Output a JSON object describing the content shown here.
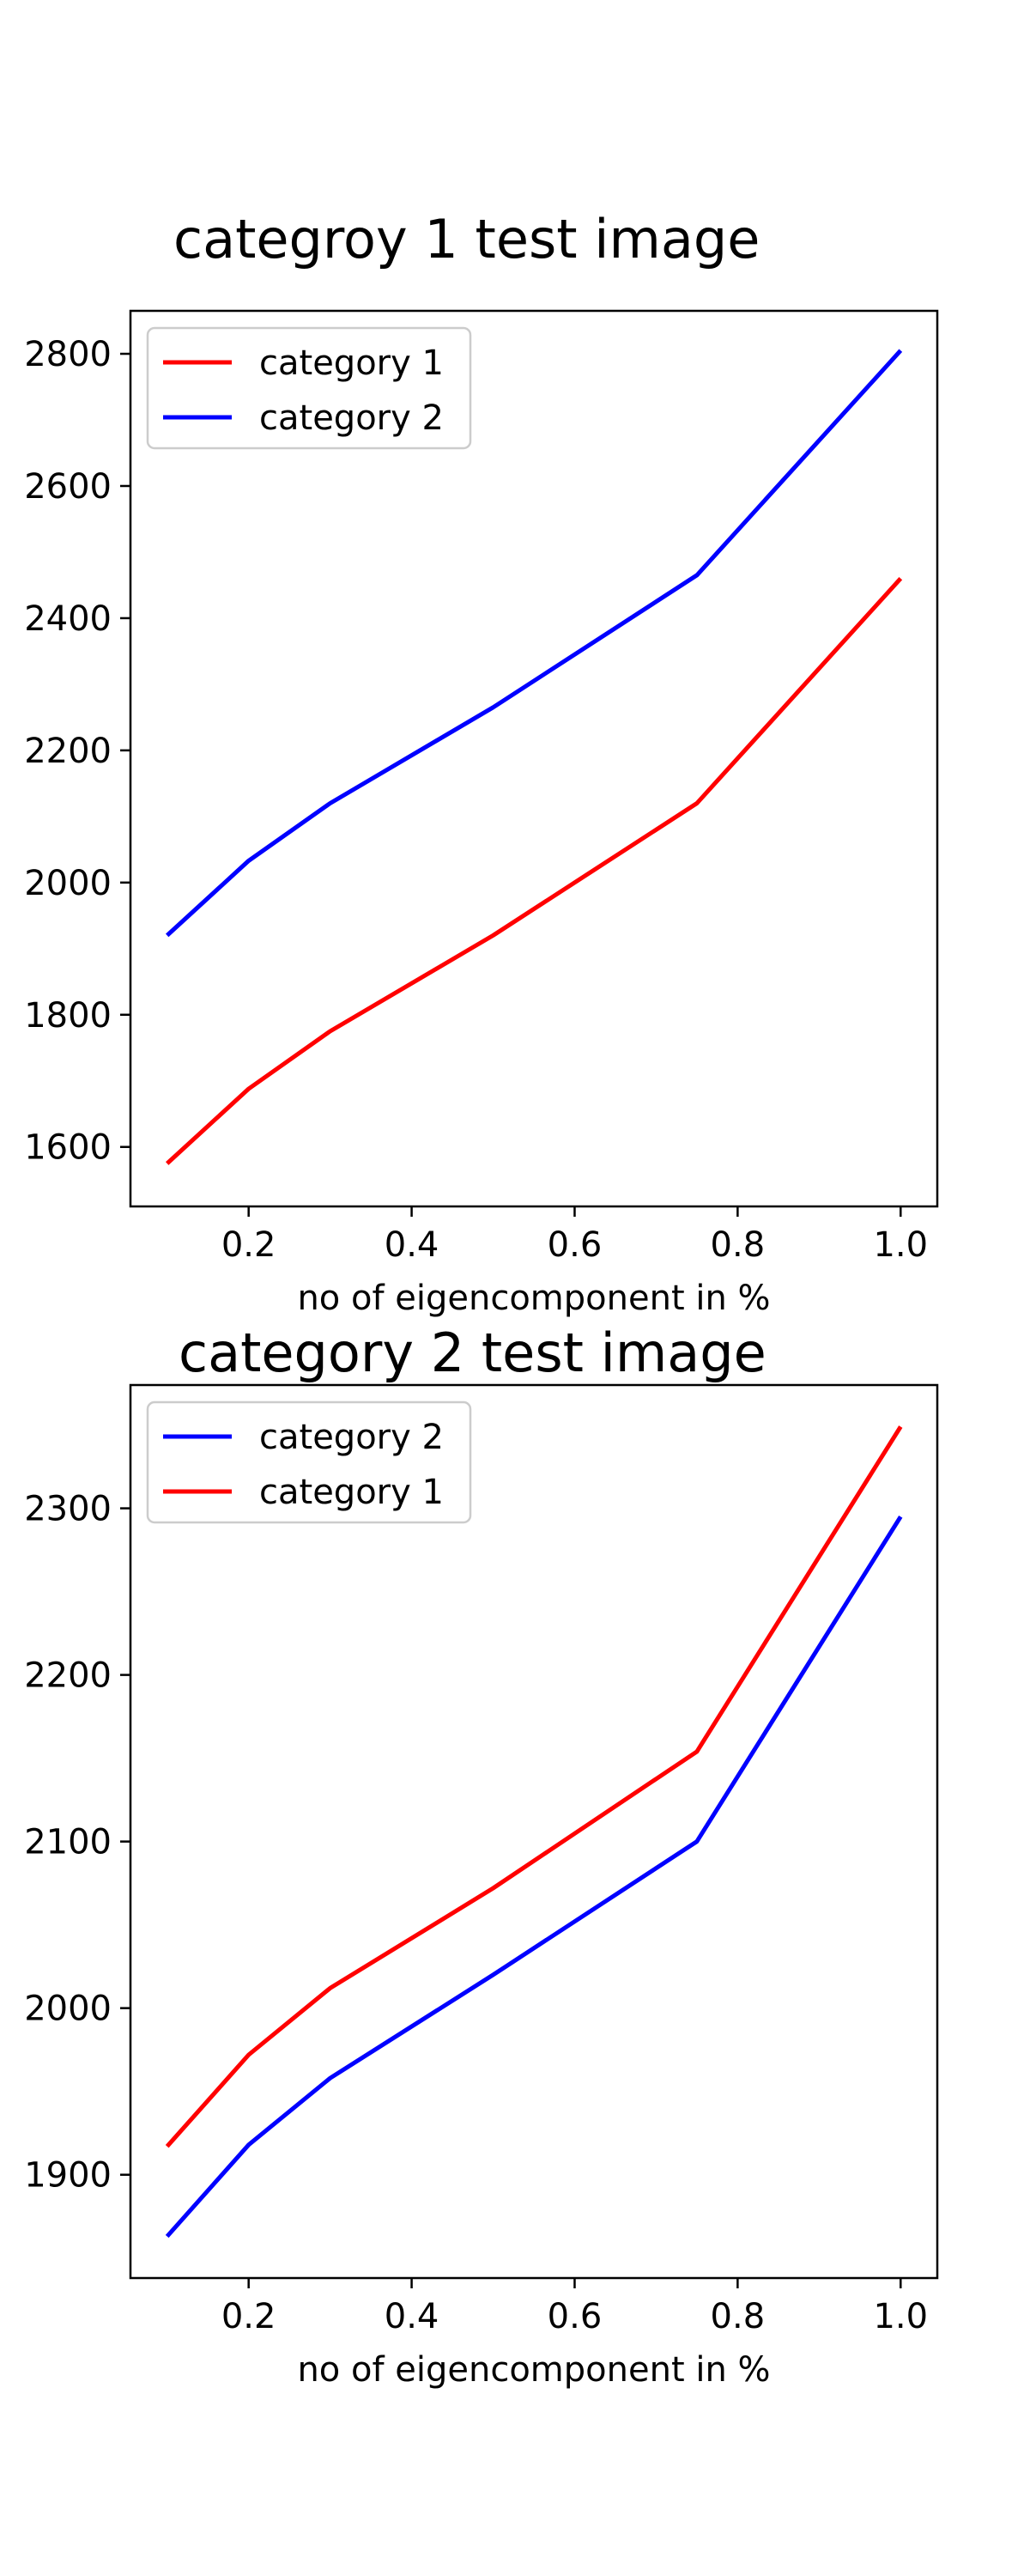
{
  "chart_data": [
    {
      "type": "line",
      "title": "categroy 1 test image",
      "xlabel": "no of eigencomponent in %",
      "ylabel": "",
      "x": [
        0.1,
        0.2,
        0.3,
        0.5,
        0.75,
        1.0
      ],
      "xlim": [
        0.055,
        1.045
      ],
      "ylim": [
        1510,
        2865
      ],
      "xticks": [
        "0.2",
        "0.4",
        "0.6",
        "0.8",
        "1.0"
      ],
      "xtick_values": [
        0.2,
        0.4,
        0.6,
        0.8,
        1.0
      ],
      "yticks": [
        "1600",
        "1800",
        "2000",
        "2200",
        "2400",
        "2600",
        "2800"
      ],
      "ytick_values": [
        1600,
        1800,
        2000,
        2200,
        2400,
        2600,
        2800
      ],
      "grid": false,
      "legend": "upper-left",
      "series": [
        {
          "name": "category 1",
          "color": "#ff0000",
          "values": [
            1575,
            1688,
            1775,
            1920,
            2120,
            2460
          ]
        },
        {
          "name": "category 2",
          "color": "#0000ff",
          "values": [
            1920,
            2033,
            2120,
            2265,
            2465,
            2805
          ]
        }
      ]
    },
    {
      "type": "line",
      "title": "category 2 test image",
      "xlabel": "no of eigencomponent in %",
      "ylabel": "",
      "x": [
        0.1,
        0.2,
        0.3,
        0.5,
        0.75,
        1.0
      ],
      "xlim": [
        0.055,
        1.045
      ],
      "ylim": [
        1838,
        2374
      ],
      "xticks": [
        "0.2",
        "0.4",
        "0.6",
        "0.8",
        "1.0"
      ],
      "xtick_values": [
        0.2,
        0.4,
        0.6,
        0.8,
        1.0
      ],
      "yticks": [
        "1900",
        "2000",
        "2100",
        "2200",
        "2300"
      ],
      "ytick_values": [
        1900,
        2000,
        2100,
        2200,
        2300
      ],
      "grid": false,
      "legend": "upper-left",
      "series": [
        {
          "name": "category 2",
          "color": "#0000ff",
          "values": [
            1863,
            1918,
            1958,
            2020,
            2100,
            2295
          ]
        },
        {
          "name": "category 1",
          "color": "#ff0000",
          "values": [
            1917,
            1972,
            2012,
            2072,
            2154,
            2349
          ]
        }
      ]
    }
  ]
}
